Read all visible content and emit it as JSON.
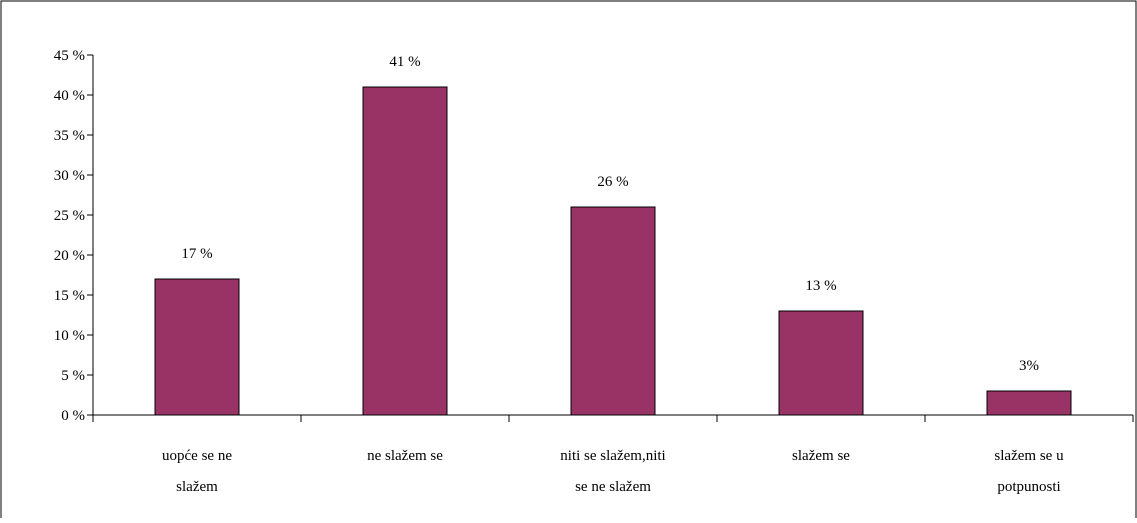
{
  "chart_data": {
    "type": "bar",
    "categories": [
      [
        "uopće se ne",
        "slažem"
      ],
      [
        "ne slažem se"
      ],
      [
        "niti se slažem,niti",
        "se ne slažem"
      ],
      [
        "slažem se"
      ],
      [
        "slažem se u",
        "potpunosti"
      ]
    ],
    "values": [
      17,
      41,
      26,
      13,
      3
    ],
    "data_labels": [
      "17 %",
      "41 %",
      "26 %",
      "13 %",
      "3%"
    ],
    "ylim": [
      0,
      45
    ],
    "y_ticks": [
      0,
      5,
      10,
      15,
      20,
      25,
      30,
      35,
      40,
      45
    ],
    "y_tick_labels": [
      "0 %",
      "5 %",
      "10 %",
      "15 %",
      "20 %",
      "25 %",
      "30 %",
      "35 %",
      "40 %",
      "45 %"
    ],
    "grid": false,
    "legend": "none",
    "colors": {
      "bar_fill": "#993366",
      "bar_stroke": "#000000",
      "axis": "#000000",
      "frame": "#000000"
    }
  }
}
